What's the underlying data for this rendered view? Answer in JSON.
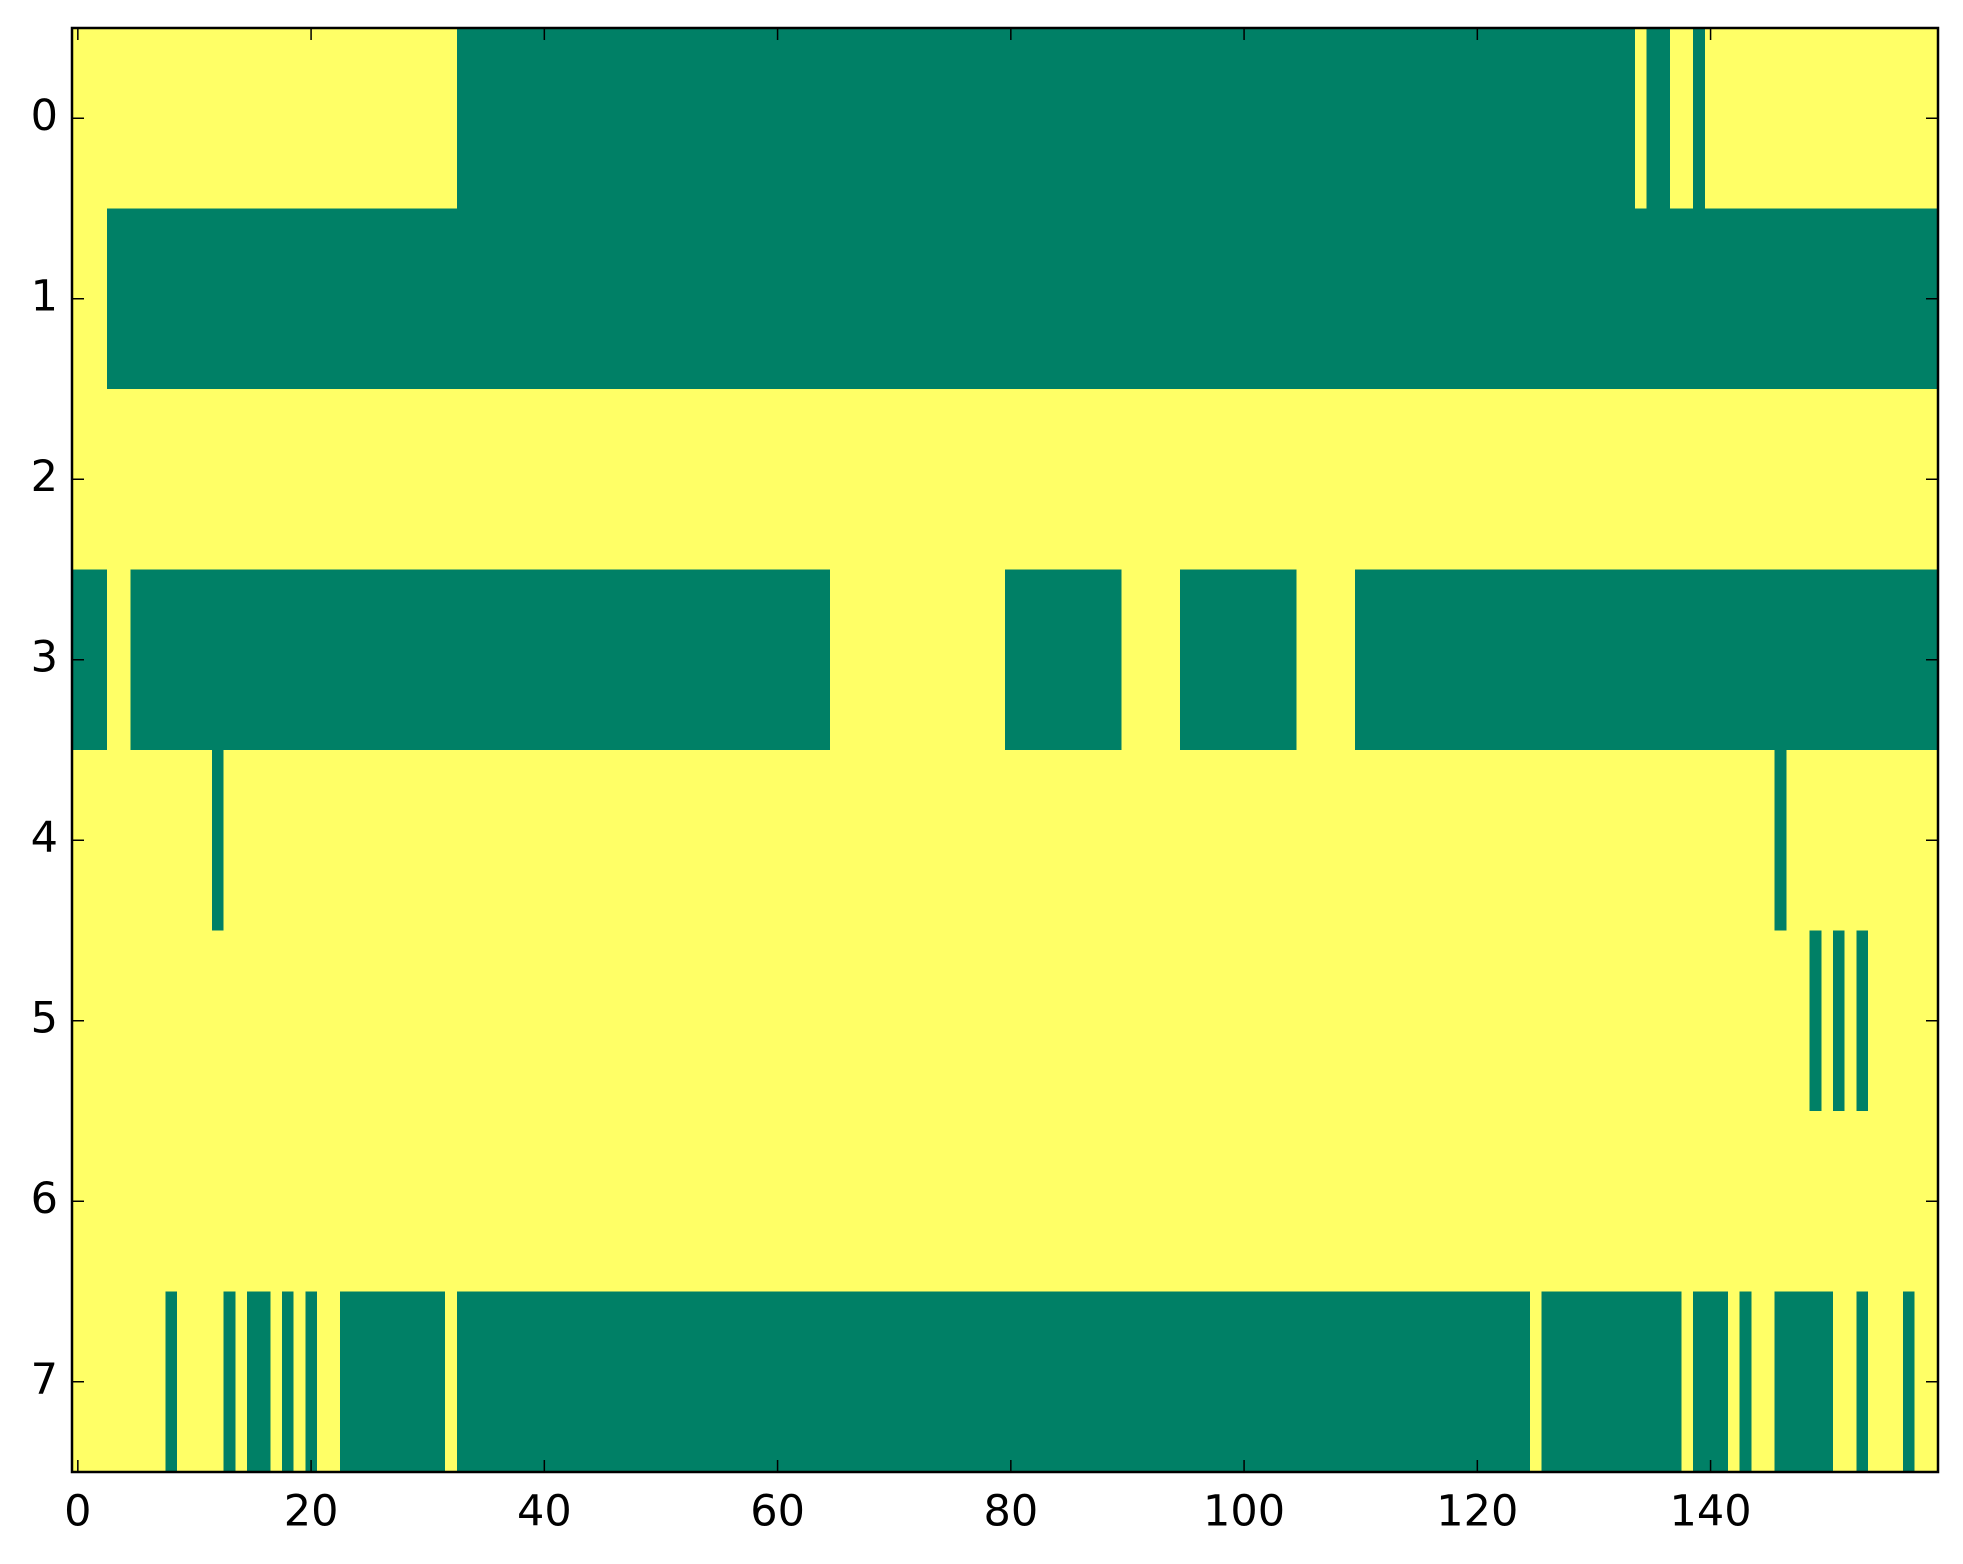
{
  "chart_data": {
    "type": "heatmap",
    "colormap": [
      "#008066",
      "#ffff66"
    ],
    "xlim": [
      -0.5,
      159.5
    ],
    "ylim": [
      7.5,
      -0.5
    ],
    "xticks": [
      0,
      20,
      40,
      60,
      80,
      100,
      120,
      140
    ],
    "yticks": [
      0,
      1,
      2,
      3,
      4,
      5,
      6,
      7
    ],
    "matrix": [
      [
        1,
        1,
        1,
        1,
        1,
        1,
        1,
        1,
        1,
        1,
        1,
        1,
        1,
        1,
        1,
        1,
        1,
        1,
        1,
        1,
        1,
        1,
        1,
        1,
        1,
        1,
        1,
        1,
        1,
        1,
        1,
        1,
        1,
        0,
        0,
        0,
        0,
        0,
        0,
        0,
        0,
        0,
        0,
        0,
        0,
        0,
        0,
        0,
        0,
        0,
        0,
        0,
        0,
        0,
        0,
        0,
        0,
        0,
        0,
        0,
        0,
        0,
        0,
        0,
        0,
        0,
        0,
        0,
        0,
        0,
        0,
        0,
        0,
        0,
        0,
        0,
        0,
        0,
        0,
        0,
        0,
        0,
        0,
        0,
        0,
        0,
        0,
        0,
        0,
        0,
        0,
        0,
        0,
        0,
        0,
        0,
        0,
        0,
        0,
        0,
        0,
        0,
        0,
        0,
        0,
        0,
        0,
        0,
        0,
        0,
        0,
        0,
        0,
        0,
        0,
        0,
        0,
        0,
        0,
        0,
        0,
        0,
        0,
        0,
        0,
        0,
        0,
        0,
        0,
        0,
        0,
        0,
        0,
        0,
        1,
        0,
        0,
        1,
        1,
        0,
        1,
        1,
        1,
        1,
        1,
        1,
        1,
        1,
        1,
        1,
        1,
        1,
        1,
        1,
        1,
        1,
        1,
        1,
        1,
        1
      ],
      [
        1,
        1,
        1,
        0,
        0,
        0,
        0,
        0,
        0,
        0,
        0,
        0,
        0,
        0,
        0,
        0,
        0,
        0,
        0,
        0,
        0,
        0,
        0,
        0,
        0,
        0,
        0,
        0,
        0,
        0,
        0,
        0,
        0,
        0,
        0,
        0,
        0,
        0,
        0,
        0,
        0,
        0,
        0,
        0,
        0,
        0,
        0,
        0,
        0,
        0,
        0,
        0,
        0,
        0,
        0,
        0,
        0,
        0,
        0,
        0,
        0,
        0,
        0,
        0,
        0,
        0,
        0,
        0,
        0,
        0,
        0,
        0,
        0,
        0,
        0,
        0,
        0,
        0,
        0,
        0,
        0,
        0,
        0,
        0,
        0,
        0,
        0,
        0,
        0,
        0,
        0,
        0,
        0,
        0,
        0,
        0,
        0,
        0,
        0,
        0,
        0,
        0,
        0,
        0,
        0,
        0,
        0,
        0,
        0,
        0,
        0,
        0,
        0,
        0,
        0,
        0,
        0,
        0,
        0,
        0,
        0,
        0,
        0,
        0,
        0,
        0,
        0,
        0,
        0,
        0,
        0,
        0,
        0,
        0,
        0,
        0,
        0,
        0,
        0,
        0,
        0,
        0,
        0,
        0,
        0,
        0,
        0,
        0,
        0,
        0,
        0,
        0,
        0,
        0,
        0,
        0,
        0,
        0,
        0,
        0
      ],
      [
        1,
        1,
        1,
        1,
        1,
        1,
        1,
        1,
        1,
        1,
        1,
        1,
        1,
        1,
        1,
        1,
        1,
        1,
        1,
        1,
        1,
        1,
        1,
        1,
        1,
        1,
        1,
        1,
        1,
        1,
        1,
        1,
        1,
        1,
        1,
        1,
        1,
        1,
        1,
        1,
        1,
        1,
        1,
        1,
        1,
        1,
        1,
        1,
        1,
        1,
        1,
        1,
        1,
        1,
        1,
        1,
        1,
        1,
        1,
        1,
        1,
        1,
        1,
        1,
        1,
        1,
        1,
        1,
        1,
        1,
        1,
        1,
        1,
        1,
        1,
        1,
        1,
        1,
        1,
        1,
        1,
        1,
        1,
        1,
        1,
        1,
        1,
        1,
        1,
        1,
        1,
        1,
        1,
        1,
        1,
        1,
        1,
        1,
        1,
        1,
        1,
        1,
        1,
        1,
        1,
        1,
        1,
        1,
        1,
        1,
        1,
        1,
        1,
        1,
        1,
        1,
        1,
        1,
        1,
        1,
        1,
        1,
        1,
        1,
        1,
        1,
        1,
        1,
        1,
        1,
        1,
        1,
        1,
        1,
        1,
        1,
        1,
        1,
        1,
        1,
        1,
        1,
        1,
        1,
        1,
        1,
        1,
        1,
        1,
        1,
        1,
        1,
        1,
        1,
        1,
        1,
        1,
        1,
        1,
        1
      ],
      [
        0,
        0,
        0,
        1,
        1,
        0,
        0,
        0,
        0,
        0,
        0,
        0,
        0,
        0,
        0,
        0,
        0,
        0,
        0,
        0,
        0,
        0,
        0,
        0,
        0,
        0,
        0,
        0,
        0,
        0,
        0,
        0,
        0,
        0,
        0,
        0,
        0,
        0,
        0,
        0,
        0,
        0,
        0,
        0,
        0,
        0,
        0,
        0,
        0,
        0,
        0,
        0,
        0,
        0,
        0,
        0,
        0,
        0,
        0,
        0,
        0,
        0,
        0,
        0,
        0,
        1,
        1,
        1,
        1,
        1,
        1,
        1,
        1,
        1,
        1,
        1,
        1,
        1,
        1,
        1,
        0,
        0,
        0,
        0,
        0,
        0,
        0,
        0,
        0,
        0,
        1,
        1,
        1,
        1,
        1,
        0,
        0,
        0,
        0,
        0,
        0,
        0,
        0,
        0,
        0,
        1,
        1,
        1,
        1,
        1,
        0,
        0,
        0,
        0,
        0,
        0,
        0,
        0,
        0,
        0,
        0,
        0,
        0,
        0,
        0,
        0,
        0,
        0,
        0,
        0,
        0,
        0,
        0,
        0,
        0,
        0,
        0,
        0,
        0,
        0,
        0,
        0,
        0,
        0,
        0,
        0,
        0,
        0,
        0,
        0,
        0,
        0,
        0,
        0,
        0,
        0,
        0,
        0,
        0,
        0
      ],
      [
        1,
        1,
        1,
        1,
        1,
        1,
        1,
        1,
        1,
        1,
        1,
        1,
        0,
        1,
        1,
        1,
        1,
        1,
        1,
        1,
        1,
        1,
        1,
        1,
        1,
        1,
        1,
        1,
        1,
        1,
        1,
        1,
        1,
        1,
        1,
        1,
        1,
        1,
        1,
        1,
        1,
        1,
        1,
        1,
        1,
        1,
        1,
        1,
        1,
        1,
        1,
        1,
        1,
        1,
        1,
        1,
        1,
        1,
        1,
        1,
        1,
        1,
        1,
        1,
        1,
        1,
        1,
        1,
        1,
        1,
        1,
        1,
        1,
        1,
        1,
        1,
        1,
        1,
        1,
        1,
        1,
        1,
        1,
        1,
        1,
        1,
        1,
        1,
        1,
        1,
        1,
        1,
        1,
        1,
        1,
        1,
        1,
        1,
        1,
        1,
        1,
        1,
        1,
        1,
        1,
        1,
        1,
        1,
        1,
        1,
        1,
        1,
        1,
        1,
        1,
        1,
        1,
        1,
        1,
        1,
        1,
        1,
        1,
        1,
        1,
        1,
        1,
        1,
        1,
        1,
        1,
        1,
        1,
        1,
        1,
        1,
        1,
        1,
        1,
        1,
        1,
        1,
        1,
        1,
        1,
        1,
        0,
        1,
        1,
        1,
        1,
        1,
        1,
        1,
        1,
        1,
        1,
        1,
        1,
        1
      ],
      [
        1,
        1,
        1,
        1,
        1,
        1,
        1,
        1,
        1,
        1,
        1,
        1,
        1,
        1,
        1,
        1,
        1,
        1,
        1,
        1,
        1,
        1,
        1,
        1,
        1,
        1,
        1,
        1,
        1,
        1,
        1,
        1,
        1,
        1,
        1,
        1,
        1,
        1,
        1,
        1,
        1,
        1,
        1,
        1,
        1,
        1,
        1,
        1,
        1,
        1,
        1,
        1,
        1,
        1,
        1,
        1,
        1,
        1,
        1,
        1,
        1,
        1,
        1,
        1,
        1,
        1,
        1,
        1,
        1,
        1,
        1,
        1,
        1,
        1,
        1,
        1,
        1,
        1,
        1,
        1,
        1,
        1,
        1,
        1,
        1,
        1,
        1,
        1,
        1,
        1,
        1,
        1,
        1,
        1,
        1,
        1,
        1,
        1,
        1,
        1,
        1,
        1,
        1,
        1,
        1,
        1,
        1,
        1,
        1,
        1,
        1,
        1,
        1,
        1,
        1,
        1,
        1,
        1,
        1,
        1,
        1,
        1,
        1,
        1,
        1,
        1,
        1,
        1,
        1,
        1,
        1,
        1,
        1,
        1,
        1,
        1,
        1,
        1,
        1,
        1,
        1,
        1,
        1,
        1,
        1,
        1,
        1,
        1,
        1,
        0,
        1,
        0,
        1,
        0,
        1,
        1,
        1,
        1,
        1,
        1
      ],
      [
        1,
        1,
        1,
        1,
        1,
        1,
        1,
        1,
        1,
        1,
        1,
        1,
        1,
        1,
        1,
        1,
        1,
        1,
        1,
        1,
        1,
        1,
        1,
        1,
        1,
        1,
        1,
        1,
        1,
        1,
        1,
        1,
        1,
        1,
        1,
        1,
        1,
        1,
        1,
        1,
        1,
        1,
        1,
        1,
        1,
        1,
        1,
        1,
        1,
        1,
        1,
        1,
        1,
        1,
        1,
        1,
        1,
        1,
        1,
        1,
        1,
        1,
        1,
        1,
        1,
        1,
        1,
        1,
        1,
        1,
        1,
        1,
        1,
        1,
        1,
        1,
        1,
        1,
        1,
        1,
        1,
        1,
        1,
        1,
        1,
        1,
        1,
        1,
        1,
        1,
        1,
        1,
        1,
        1,
        1,
        1,
        1,
        1,
        1,
        1,
        1,
        1,
        1,
        1,
        1,
        1,
        1,
        1,
        1,
        1,
        1,
        1,
        1,
        1,
        1,
        1,
        1,
        1,
        1,
        1,
        1,
        1,
        1,
        1,
        1,
        1,
        1,
        1,
        1,
        1,
        1,
        1,
        1,
        1,
        1,
        1,
        1,
        1,
        1,
        1,
        1,
        1,
        1,
        1,
        1,
        1,
        1,
        1,
        1,
        1,
        1,
        1,
        1,
        1,
        1,
        1,
        1,
        1,
        1,
        1
      ],
      [
        1,
        1,
        1,
        1,
        1,
        1,
        1,
        1,
        0,
        1,
        1,
        1,
        1,
        0,
        1,
        0,
        0,
        1,
        0,
        1,
        0,
        1,
        1,
        0,
        0,
        0,
        0,
        0,
        0,
        0,
        0,
        0,
        1,
        0,
        0,
        0,
        0,
        0,
        0,
        0,
        0,
        0,
        0,
        0,
        0,
        0,
        0,
        0,
        0,
        0,
        0,
        0,
        0,
        0,
        0,
        0,
        0,
        0,
        0,
        0,
        0,
        0,
        0,
        0,
        0,
        0,
        0,
        0,
        0,
        0,
        0,
        0,
        0,
        0,
        0,
        0,
        0,
        0,
        0,
        0,
        0,
        0,
        0,
        0,
        0,
        0,
        0,
        0,
        0,
        0,
        0,
        0,
        0,
        0,
        0,
        0,
        0,
        0,
        0,
        0,
        0,
        0,
        0,
        0,
        0,
        0,
        0,
        0,
        0,
        0,
        0,
        0,
        0,
        0,
        0,
        0,
        0,
        0,
        0,
        0,
        0,
        0,
        0,
        0,
        0,
        1,
        0,
        0,
        0,
        0,
        0,
        0,
        0,
        0,
        0,
        0,
        0,
        0,
        1,
        0,
        0,
        0,
        1,
        0,
        1,
        1,
        0,
        0,
        0,
        0,
        0,
        1,
        1,
        0,
        1,
        1,
        1,
        0,
        1,
        1
      ]
    ]
  }
}
